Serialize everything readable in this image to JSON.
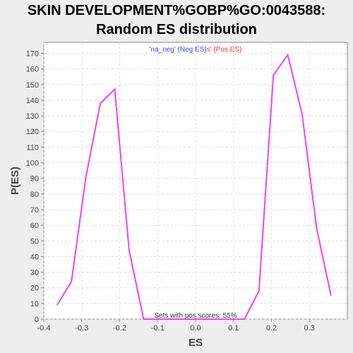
{
  "chart_data": {
    "type": "line",
    "title": "SKIN DEVELOPMENT%GOBP%GO:0043588:",
    "subtitle": "Random ES distribution",
    "xlabel": "ES",
    "ylabel": "P(ES)",
    "xlim": [
      -0.4,
      0.4
    ],
    "ylim": [
      0,
      177
    ],
    "xticks": [
      -0.4,
      -0.3,
      -0.2,
      -0.1,
      0.0,
      0.1,
      0.2,
      0.3
    ],
    "xtick_labels": [
      "-0.4",
      "-0.3",
      "-0.2",
      "-0.1",
      "0.0",
      "0.1",
      "0.2",
      "0.3"
    ],
    "yticks": [
      0,
      10,
      20,
      30,
      40,
      50,
      60,
      70,
      80,
      90,
      100,
      110,
      120,
      130,
      140,
      150,
      160,
      170
    ],
    "grid": true,
    "legend": {
      "placement": "top-center",
      "neg_label": "'na_neg' (Neg ES)",
      "overlap_label": "s'",
      "pos_label": " (Pos ES)"
    },
    "annotation": "Sets with pos scores: 55%",
    "line_color": "#ee44ee",
    "neg_color": "#4444ee",
    "pos_color": "#ee3333",
    "series": [
      {
        "x": [
          -0.365,
          -0.327,
          -0.289,
          -0.251,
          -0.213,
          -0.175,
          -0.137,
          -0.099,
          -0.061,
          -0.023,
          0.015,
          0.053,
          0.091,
          0.129,
          0.167,
          0.205,
          0.243,
          0.281,
          0.319,
          0.357
        ],
        "y": [
          9,
          24,
          91,
          138,
          147,
          44,
          0,
          0,
          0,
          0,
          0,
          0,
          0,
          0,
          18,
          156,
          169,
          131,
          58,
          15
        ]
      }
    ]
  }
}
